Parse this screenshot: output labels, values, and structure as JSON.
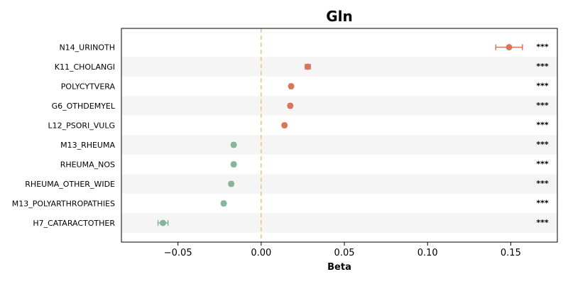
{
  "chart_data": {
    "type": "scatter",
    "title": "Gln",
    "xlabel": "Beta",
    "ylabel": "",
    "xlim": [
      -0.084,
      0.178
    ],
    "xticks": [
      -0.05,
      0.0,
      0.05,
      0.1,
      0.15
    ],
    "xtick_labels": [
      "−0.05",
      "0.00",
      "0.05",
      "0.10",
      "0.15"
    ],
    "reference_line_x": 0,
    "significance_label": "***",
    "colors": {
      "positive": "#d9765a",
      "negative": "#86b59a",
      "reference_line": "#f5c27a",
      "band": "#f5f5f5"
    },
    "rows": [
      {
        "label": "N14_URINOTH",
        "beta": 0.149,
        "ci_low": 0.141,
        "ci_high": 0.157,
        "sig": "***"
      },
      {
        "label": "K11_CHOLANGI",
        "beta": 0.028,
        "ci_low": 0.0265,
        "ci_high": 0.0295,
        "sig": "***"
      },
      {
        "label": "POLYCYTVERA",
        "beta": 0.018,
        "ci_low": 0.017,
        "ci_high": 0.019,
        "sig": "***"
      },
      {
        "label": "G6_OTHDEMYEL",
        "beta": 0.0175,
        "ci_low": 0.0165,
        "ci_high": 0.0185,
        "sig": "***"
      },
      {
        "label": "L12_PSORI_VULG",
        "beta": 0.014,
        "ci_low": 0.013,
        "ci_high": 0.015,
        "sig": "***"
      },
      {
        "label": "M13_RHEUMA",
        "beta": -0.0165,
        "ci_low": -0.0175,
        "ci_high": -0.0155,
        "sig": "***"
      },
      {
        "label": "RHEUMA_NOS",
        "beta": -0.0165,
        "ci_low": -0.0175,
        "ci_high": -0.0155,
        "sig": "***"
      },
      {
        "label": "RHEUMA_OTHER_WIDE",
        "beta": -0.018,
        "ci_low": -0.019,
        "ci_high": -0.017,
        "sig": "***"
      },
      {
        "label": "M13_POLYARTHROPATHIES",
        "beta": -0.0225,
        "ci_low": -0.0235,
        "ci_high": -0.0215,
        "sig": "***"
      },
      {
        "label": "H7_CATARACTOTHER",
        "beta": -0.059,
        "ci_low": -0.062,
        "ci_high": -0.056,
        "sig": "***"
      }
    ]
  }
}
